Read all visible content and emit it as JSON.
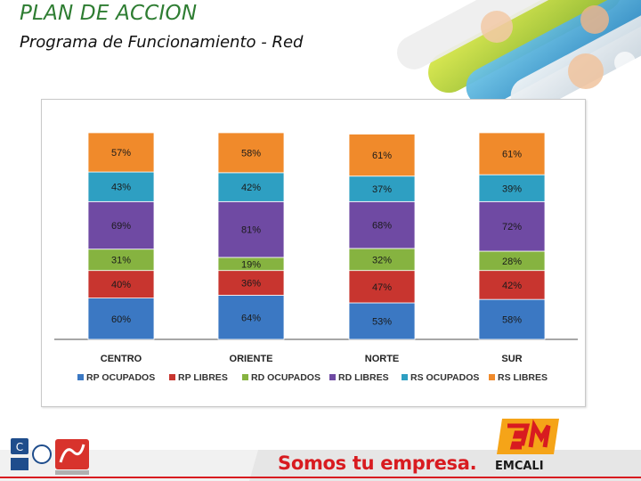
{
  "header": {
    "title": "PLAN DE ACCION",
    "subtitle": "Programa de Funcionamiento - Red"
  },
  "footer": {
    "slogan": "Somos tu empresa.",
    "brand": "EMCALI"
  },
  "colors": {
    "title": "#2e7d32",
    "slogan": "#d81b20"
  },
  "chart_data": {
    "type": "bar",
    "stacked": true,
    "categories": [
      "CENTRO",
      "ORIENTE",
      "NORTE",
      "SUR"
    ],
    "legend_position": "bottom",
    "grid": false,
    "series": [
      {
        "name": "RP OCUPADOS",
        "values": [
          60,
          64,
          53,
          58
        ],
        "labels": [
          "60%",
          "64%",
          "53%",
          "58%"
        ],
        "color": "#3b78c3"
      },
      {
        "name": "RP LIBRES",
        "values": [
          40,
          36,
          47,
          42
        ],
        "labels": [
          "40%",
          "36%",
          "47%",
          "42%"
        ],
        "color": "#c8352f"
      },
      {
        "name": "RD OCUPADOS",
        "values": [
          31,
          19,
          32,
          28
        ],
        "labels": [
          "31%",
          "19%",
          "32%",
          "28%"
        ],
        "color": "#86b340"
      },
      {
        "name": "RD LIBRES",
        "values": [
          69,
          81,
          68,
          72
        ],
        "labels": [
          "69%",
          "81%",
          "68%",
          "72%"
        ],
        "color": "#6f4aa3"
      },
      {
        "name": "RS OCUPADOS",
        "values": [
          43,
          42,
          37,
          39
        ],
        "labels": [
          "43%",
          "42%",
          "37%",
          "39%"
        ],
        "color": "#2e9fc2"
      },
      {
        "name": "RS LIBRES",
        "values": [
          57,
          58,
          61,
          61
        ],
        "labels": [
          "57%",
          "58%",
          "61%",
          "61%"
        ],
        "color": "#f08a2b"
      }
    ]
  }
}
